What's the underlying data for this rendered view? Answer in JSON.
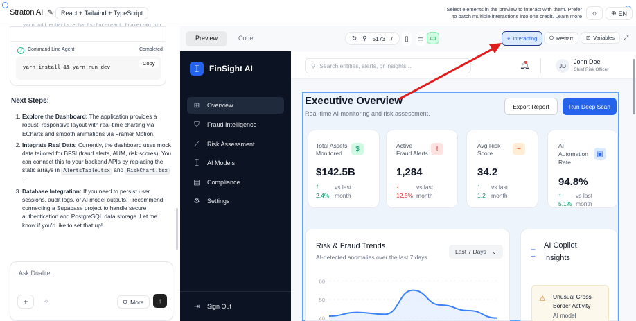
{
  "topbar": {
    "app_name": "Straton AI",
    "stack_badge": "React + Tailwind + TypeScript",
    "notice_line1": "Select elements in the preview to interact with them. Prefer",
    "notice_line2": "to batch multiple interactions into one credit.",
    "notice_link": "Learn more",
    "lang": "EN"
  },
  "chat": {
    "truncated_cmd": "yarn add echarts echarts-for-react framer-motion",
    "agent_label": "Command Line Agent",
    "agent_status": "Completed",
    "command": "yarn install && yarn run dev",
    "copy_label": "Copy",
    "next_steps_title": "Next Steps:",
    "step1_title": "Explore the Dashboard:",
    "step1_text": " The application provides a robust, responsive layout with real-time charting via ECharts and smooth animations via Framer Motion.",
    "step2_title": "Integrate Real Data:",
    "step2_text_a": " Currently, the dashboard uses mock data tailored for BFSI (fraud alerts, AUM, risk scores). You can connect this to your backend APIs by replacing the static arrays in ",
    "step2_code1": "AlertsTable.tsx",
    "step2_text_b": " and ",
    "step2_code2": "RiskChart.tsx",
    "step2_text_c": " .",
    "step3_title": "Database Integration:",
    "step3_text": " If you need to persist user sessions, audit logs, or AI model outputs, I recommend connecting a Supabase project to handle secure authentication and PostgreSQL data storage. Let me know if you'd like to set that up!",
    "input_placeholder": "Ask Dualite...",
    "more_label": "More"
  },
  "preview_bar": {
    "tab_preview": "Preview",
    "tab_code": "Code",
    "port": "5173",
    "path_sep": "/",
    "interacting": "Interacting",
    "restart": "Restart",
    "variables": "Variables"
  },
  "app": {
    "logo_text": "FinSight AI",
    "nav": [
      "Overview",
      "Fraud Intelligence",
      "Risk Assessment",
      "AI Models",
      "Compliance",
      "Settings"
    ],
    "sign_out": "Sign Out",
    "search_placeholder": "Search entities, alerts, or insights...",
    "user_initials": "JD",
    "user_name": "John Doe",
    "user_role": "Chief Risk Officer",
    "page_title": "Executive Overview",
    "page_subtitle": "Real-time AI monitoring and risk assessment.",
    "export_btn": "Export Report",
    "scan_btn": "Run Deep Scan",
    "kpis": [
      {
        "title1": "Total Assets",
        "title2": "Monitored",
        "value": "$142.5B",
        "arrow": "↑",
        "change": "2.4%",
        "vs1": "vs last",
        "vs2": "month",
        "icon": "$",
        "accent": "#10b981"
      },
      {
        "title1": "Active",
        "title2": "Fraud Alerts",
        "value": "1,284",
        "arrow": "↓",
        "change": "12.5%",
        "vs1": "vs last",
        "vs2": "month",
        "icon": "!",
        "accent": "#ef4444"
      },
      {
        "title1": "Avg Risk",
        "title2": "Score",
        "value": "34.2",
        "arrow": "↑",
        "change": "1.2",
        "vs1": "vs last",
        "vs2": "month",
        "icon": "~",
        "accent": "#f97316"
      },
      {
        "title1": "AI",
        "title2": "Automation",
        "title3": "Rate",
        "value": "94.8%",
        "arrow": "↑",
        "change": "5.1%",
        "vs1": "vs last",
        "vs2": "month",
        "icon": "▣",
        "accent": "#2563eb"
      }
    ],
    "trends_title": "Risk & Fraud Trends",
    "trends_subtitle": "AI-detected anomalies over the last 7 days",
    "range_select": "Last 7 Days",
    "copilot_title1": "AI Copilot",
    "copilot_title2": "Insights",
    "alert_title1": "Unusual Cross-",
    "alert_title2": "Border Activity",
    "alert_sub": "AI model"
  },
  "chart_data": {
    "type": "area",
    "y_ticks": [
      "60",
      "50",
      "40"
    ],
    "ylim": [
      35,
      65
    ],
    "x": [
      0,
      1,
      2,
      3,
      4,
      5,
      6
    ],
    "values": [
      41,
      43,
      42,
      55,
      47,
      44,
      40
    ]
  }
}
